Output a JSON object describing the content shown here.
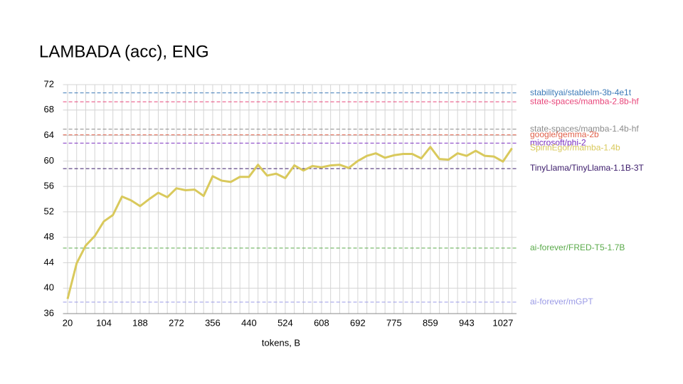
{
  "chart_data": {
    "type": "line",
    "title": "LAMBADA (acc), ENG",
    "x_label": "tokens, B",
    "categories": [
      "20",
      null,
      null,
      null,
      "104",
      null,
      null,
      null,
      "188",
      null,
      null,
      null,
      "272",
      null,
      null,
      null,
      "356",
      null,
      null,
      null,
      "440",
      null,
      null,
      null,
      "524",
      null,
      null,
      null,
      "608",
      null,
      null,
      null,
      "692",
      null,
      null,
      null,
      "775",
      null,
      null,
      null,
      "859",
      null,
      null,
      null,
      "943",
      null,
      null,
      null,
      "1027",
      null
    ],
    "series": [
      {
        "name": "SpirinEgor/mamba-1.4b",
        "color": "#d9c95c",
        "values": [
          38.3,
          43.9,
          46.7,
          48.2,
          50.5,
          51.5,
          54.4,
          53.8,
          52.9,
          54.0,
          55.0,
          54.3,
          55.7,
          55.4,
          55.5,
          54.5,
          57.6,
          56.9,
          56.7,
          57.5,
          57.5,
          59.4,
          57.7,
          58.0,
          57.3,
          59.3,
          58.5,
          59.2,
          59.0,
          59.3,
          59.4,
          58.9,
          60.0,
          60.8,
          61.2,
          60.5,
          60.9,
          61.1,
          61.1,
          60.4,
          62.2,
          60.3,
          60.2,
          61.2,
          60.8,
          61.6,
          60.8,
          60.7,
          59.9,
          62.0
        ]
      }
    ],
    "reference_lines": [
      {
        "name": "stabilityai/stablelm-3b-4e1t",
        "color": "#3d7ab8",
        "value": 70.7
      },
      {
        "name": "state-spaces/mamba-2.8b-hf",
        "color": "#e8457a",
        "value": 69.3
      },
      {
        "name": "state-spaces/mamba-1.4b-hf",
        "color": "#8c8c8c",
        "value": 65.0
      },
      {
        "name": "google/gemma-2b",
        "color": "#e0604a",
        "value": 64.1
      },
      {
        "name": "microsoft/phi-2",
        "color": "#7a2fc0",
        "value": 62.8
      },
      {
        "name": "TinyLlama/TinyLlama-1.1B-3T",
        "color": "#3a1a6a",
        "value": 58.8
      },
      {
        "name": "ai-forever/FRED-T5-1.7B",
        "color": "#5aaa4a",
        "value": 46.3
      },
      {
        "name": "ai-forever/mGPT",
        "color": "#9a9ae6",
        "value": 37.8
      }
    ],
    "ylim": [
      36,
      72
    ],
    "yticks": [
      36,
      40,
      44,
      48,
      52,
      56,
      60,
      64,
      68,
      72
    ],
    "grid": true
  }
}
